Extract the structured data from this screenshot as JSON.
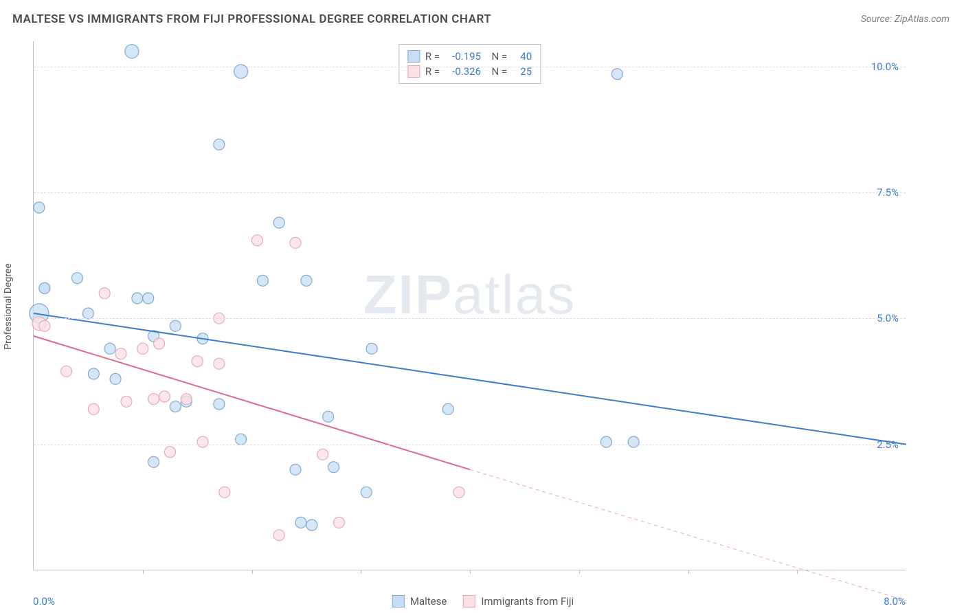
{
  "header": {
    "title": "MALTESE VS IMMIGRANTS FROM FIJI PROFESSIONAL DEGREE CORRELATION CHART",
    "source": "Source: ZipAtlas.com"
  },
  "chart": {
    "type": "scatter",
    "ylabel": "Professional Degree",
    "xlim": [
      0.0,
      8.0
    ],
    "ylim": [
      0.0,
      10.5
    ],
    "x_axis_label_left": "0.0%",
    "x_axis_label_right": "8.0%",
    "xtick_positions": [
      1.0,
      2.0,
      3.0,
      4.0,
      5.0,
      6.0,
      7.0
    ],
    "yticks": [
      {
        "value": 2.5,
        "label": "2.5%"
      },
      {
        "value": 5.0,
        "label": "5.0%"
      },
      {
        "value": 7.5,
        "label": "7.5%"
      },
      {
        "value": 10.0,
        "label": "10.0%"
      }
    ],
    "background_color": "#ffffff",
    "grid_color": "#dcdcdc",
    "axis_color": "#bfbfbf",
    "watermark": {
      "bold": "ZIP",
      "light": "atlas",
      "color": "#cfd8e3",
      "fontsize": 80
    },
    "series": [
      {
        "name": "Maltese",
        "marker_fill": "#c7ddf3",
        "marker_stroke": "#7fa9d6",
        "line_color": "#3d7cc9",
        "line_width": 2,
        "line_style": "solid",
        "trend": {
          "x1": 0.0,
          "y1": 5.1,
          "x2": 8.0,
          "y2": 2.5
        },
        "R": "-0.195",
        "N": "40",
        "points": [
          {
            "x": 0.05,
            "y": 7.2,
            "r": 8
          },
          {
            "x": 0.1,
            "y": 5.6,
            "r": 8
          },
          {
            "x": 0.05,
            "y": 5.1,
            "r": 14
          },
          {
            "x": 0.4,
            "y": 5.8,
            "r": 8
          },
          {
            "x": 0.5,
            "y": 5.1,
            "r": 8
          },
          {
            "x": 0.55,
            "y": 3.9,
            "r": 8
          },
          {
            "x": 0.7,
            "y": 4.4,
            "r": 8
          },
          {
            "x": 0.75,
            "y": 3.8,
            "r": 8
          },
          {
            "x": 0.9,
            "y": 10.3,
            "r": 10
          },
          {
            "x": 0.95,
            "y": 5.4,
            "r": 8
          },
          {
            "x": 1.05,
            "y": 5.4,
            "r": 8
          },
          {
            "x": 1.1,
            "y": 4.65,
            "r": 8
          },
          {
            "x": 1.1,
            "y": 2.15,
            "r": 8
          },
          {
            "x": 1.3,
            "y": 3.25,
            "r": 8
          },
          {
            "x": 1.3,
            "y": 4.85,
            "r": 8
          },
          {
            "x": 1.4,
            "y": 3.35,
            "r": 8
          },
          {
            "x": 1.55,
            "y": 4.6,
            "r": 8
          },
          {
            "x": 1.7,
            "y": 8.45,
            "r": 8
          },
          {
            "x": 1.7,
            "y": 3.3,
            "r": 8
          },
          {
            "x": 1.9,
            "y": 9.9,
            "r": 10
          },
          {
            "x": 1.9,
            "y": 2.6,
            "r": 8
          },
          {
            "x": 2.1,
            "y": 5.75,
            "r": 8
          },
          {
            "x": 2.25,
            "y": 6.9,
            "r": 8
          },
          {
            "x": 2.4,
            "y": 2.0,
            "r": 8
          },
          {
            "x": 2.5,
            "y": 5.75,
            "r": 8
          },
          {
            "x": 2.45,
            "y": 0.95,
            "r": 8
          },
          {
            "x": 2.55,
            "y": 0.9,
            "r": 8
          },
          {
            "x": 2.7,
            "y": 3.05,
            "r": 8
          },
          {
            "x": 2.75,
            "y": 2.05,
            "r": 8
          },
          {
            "x": 3.05,
            "y": 1.55,
            "r": 8
          },
          {
            "x": 3.1,
            "y": 4.4,
            "r": 8
          },
          {
            "x": 3.8,
            "y": 3.2,
            "r": 8
          },
          {
            "x": 5.25,
            "y": 2.55,
            "r": 8
          },
          {
            "x": 5.5,
            "y": 2.55,
            "r": 8
          },
          {
            "x": 5.35,
            "y": 9.85,
            "r": 8
          },
          {
            "x": 0.1,
            "y": 5.6,
            "r": 8
          }
        ]
      },
      {
        "name": "Immigrants from Fiji",
        "marker_fill": "#fbe0e6",
        "marker_stroke": "#e8a7b8",
        "line_color": "#e06a8a",
        "line_width": 2,
        "line_style": "solid",
        "trend": {
          "x1": 0.0,
          "y1": 4.65,
          "x2": 4.0,
          "y2": 2.0
        },
        "trend_ext": {
          "x1": 4.0,
          "y1": 2.0,
          "x2": 8.0,
          "y2": -0.6,
          "dash": "5,5"
        },
        "R": "-0.326",
        "N": "25",
        "points": [
          {
            "x": 0.05,
            "y": 4.9,
            "r": 10
          },
          {
            "x": 0.1,
            "y": 4.85,
            "r": 8
          },
          {
            "x": 0.3,
            "y": 3.95,
            "r": 8
          },
          {
            "x": 0.55,
            "y": 3.2,
            "r": 8
          },
          {
            "x": 0.65,
            "y": 5.5,
            "r": 8
          },
          {
            "x": 0.8,
            "y": 4.3,
            "r": 8
          },
          {
            "x": 0.85,
            "y": 3.35,
            "r": 8
          },
          {
            "x": 1.0,
            "y": 4.4,
            "r": 8
          },
          {
            "x": 1.15,
            "y": 4.5,
            "r": 8
          },
          {
            "x": 1.1,
            "y": 3.4,
            "r": 8
          },
          {
            "x": 1.2,
            "y": 3.45,
            "r": 8
          },
          {
            "x": 1.25,
            "y": 2.35,
            "r": 8
          },
          {
            "x": 1.4,
            "y": 3.4,
            "r": 8
          },
          {
            "x": 1.5,
            "y": 4.15,
            "r": 8
          },
          {
            "x": 1.55,
            "y": 2.55,
            "r": 8
          },
          {
            "x": 1.7,
            "y": 4.1,
            "r": 8
          },
          {
            "x": 1.7,
            "y": 5.0,
            "r": 8
          },
          {
            "x": 1.75,
            "y": 1.55,
            "r": 8
          },
          {
            "x": 2.05,
            "y": 6.55,
            "r": 8
          },
          {
            "x": 2.4,
            "y": 6.5,
            "r": 8
          },
          {
            "x": 2.25,
            "y": 0.7,
            "r": 8
          },
          {
            "x": 2.65,
            "y": 2.3,
            "r": 8
          },
          {
            "x": 2.8,
            "y": 0.95,
            "r": 8
          },
          {
            "x": 3.9,
            "y": 1.55,
            "r": 8
          }
        ]
      }
    ],
    "legend_bottom": [
      {
        "swatch_fill": "#c7ddf3",
        "swatch_stroke": "#7fa9d6",
        "label": "Maltese"
      },
      {
        "swatch_fill": "#fbe0e6",
        "swatch_stroke": "#e8a7b8",
        "label": "Immigrants from Fiji"
      }
    ]
  }
}
